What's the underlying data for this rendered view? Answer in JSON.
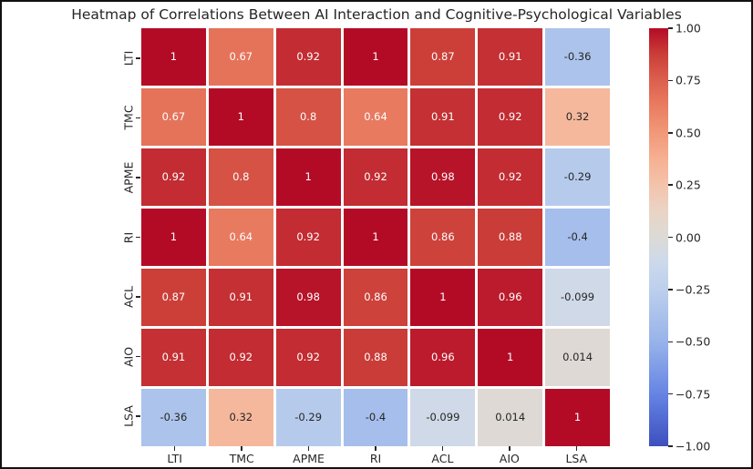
{
  "title": "Heatmap of Correlations Between AI Interaction and Cognitive-Psychological Variables",
  "colors": {
    "background": "#ffffff",
    "frame": "#111111",
    "grid_gap": "#ffffff",
    "annotation_dark": "#262626",
    "annotation_light": "#ffffff",
    "tick_text": "#262626"
  },
  "chart_data": {
    "type": "heatmap",
    "categories": [
      "LTI",
      "TMC",
      "APME",
      "RI",
      "ACL",
      "AIO",
      "LSA"
    ],
    "matrix": [
      [
        1,
        0.67,
        0.92,
        1,
        0.87,
        0.91,
        -0.36
      ],
      [
        0.67,
        1,
        0.8,
        0.64,
        0.91,
        0.92,
        0.32
      ],
      [
        0.92,
        0.8,
        1,
        0.92,
        0.98,
        0.92,
        -0.29
      ],
      [
        1,
        0.64,
        0.92,
        1,
        0.86,
        0.88,
        -0.4
      ],
      [
        0.87,
        0.91,
        0.98,
        0.86,
        1,
        0.96,
        -0.099
      ],
      [
        0.91,
        0.92,
        0.92,
        0.88,
        0.96,
        1,
        0.014
      ],
      [
        -0.36,
        0.32,
        -0.29,
        -0.4,
        -0.099,
        0.014,
        1
      ]
    ],
    "value_range": [
      -1,
      1
    ],
    "annotations_on": true,
    "grid_on": false,
    "colorbar": {
      "position": "right",
      "tick_labels": [
        "1.00",
        "0.75",
        "0.50",
        "0.25",
        "0.00",
        "−0.25",
        "−0.50",
        "−0.75",
        "−1.00"
      ],
      "min": -1,
      "max": 1
    },
    "colormap": {
      "name": "coolwarm",
      "stops": [
        {
          "t": 0.0,
          "color": "#3D50BE"
        },
        {
          "t": 0.125,
          "color": "#6684E4"
        },
        {
          "t": 0.25,
          "color": "#98B3EA"
        },
        {
          "t": 0.375,
          "color": "#BCCFEC"
        },
        {
          "t": 0.4375,
          "color": "#CCD9EC"
        },
        {
          "t": 0.5,
          "color": "#DCDAD6"
        },
        {
          "t": 0.5625,
          "color": "#EAD4C5"
        },
        {
          "t": 0.625,
          "color": "#F4C3AB"
        },
        {
          "t": 0.6875,
          "color": "#F6B092"
        },
        {
          "t": 0.75,
          "color": "#F19879"
        },
        {
          "t": 0.8125,
          "color": "#EA7D61"
        },
        {
          "t": 0.875,
          "color": "#DC604E"
        },
        {
          "t": 0.9375,
          "color": "#CB3E38"
        },
        {
          "t": 1.0,
          "color": "#B30B26"
        }
      ],
      "text_color_threshold": 0.5
    }
  }
}
